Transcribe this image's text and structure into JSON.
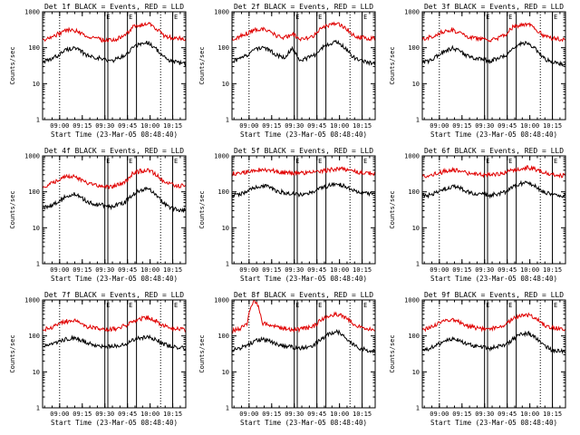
{
  "figure": {
    "background": "#ffffff",
    "colors": {
      "events": "#000000",
      "lld": "#e00000",
      "frame": "#000000"
    }
  },
  "chart_data": [
    {
      "type": "line",
      "title": "Det 1f BLACK = Events, RED = LLD",
      "xlabel": "Start Time (23-Mar-05 08:48:40)",
      "ylabel": "Counts/sec",
      "yscale": "log",
      "ylim": [
        1,
        1000
      ],
      "xlim_minutes": [
        0,
        95
      ],
      "xtick_labels": [
        "09:00",
        "09:15",
        "09:30",
        "09:45",
        "10:00",
        "10:15"
      ],
      "ytick_labels": [
        "1",
        "10",
        "100",
        "1000"
      ],
      "x": [
        0,
        5,
        10,
        15,
        20,
        25,
        30,
        35,
        40,
        45,
        50,
        55,
        60,
        65,
        70,
        75,
        80,
        85,
        90,
        95
      ],
      "series": [
        {
          "name": "Events",
          "color": "#000000",
          "values": [
            40,
            45,
            60,
            85,
            100,
            80,
            60,
            55,
            48,
            42,
            50,
            60,
            100,
            130,
            140,
            95,
            55,
            42,
            38,
            36
          ]
        },
        {
          "name": "LLD",
          "color": "#e00000",
          "values": [
            170,
            190,
            240,
            300,
            320,
            260,
            200,
            180,
            165,
            160,
            180,
            220,
            380,
            420,
            460,
            350,
            220,
            190,
            180,
            175
          ]
        }
      ],
      "vlines_dotted_minutes": [
        11.3,
        78.3
      ],
      "vlines_solid_minutes": [
        41.3,
        43.3,
        56.3,
        62.3,
        86.3
      ],
      "flags": [
        "E"
      ]
    },
    {
      "type": "line",
      "title": "Det 2f BLACK = Events, RED = LLD",
      "xlabel": "Start Time (23-Mar-05 08:48:40)",
      "ylabel": "Counts/sec",
      "yscale": "log",
      "ylim": [
        1,
        1000
      ],
      "xlim_minutes": [
        0,
        95
      ],
      "xtick_labels": [
        "09:00",
        "09:15",
        "09:30",
        "09:45",
        "10:00",
        "10:15"
      ],
      "ytick_labels": [
        "1",
        "10",
        "100",
        "1000"
      ],
      "x": [
        0,
        5,
        10,
        15,
        20,
        25,
        30,
        35,
        40,
        45,
        50,
        55,
        60,
        65,
        70,
        75,
        80,
        85,
        90,
        95
      ],
      "series": [
        {
          "name": "Events",
          "color": "#000000",
          "values": [
            42,
            48,
            62,
            90,
            105,
            82,
            62,
            55,
            90,
            45,
            52,
            62,
            100,
            135,
            145,
            98,
            56,
            43,
            39,
            37
          ]
        },
        {
          "name": "LLD",
          "color": "#e00000",
          "values": [
            180,
            200,
            250,
            310,
            330,
            270,
            210,
            190,
            240,
            165,
            185,
            225,
            380,
            430,
            470,
            360,
            225,
            195,
            185,
            180
          ]
        }
      ],
      "vlines_dotted_minutes": [
        11.3,
        78.3
      ],
      "vlines_solid_minutes": [
        41.3,
        43.3,
        56.3,
        62.3,
        86.3
      ],
      "flags": [
        "E"
      ]
    },
    {
      "type": "line",
      "title": "Det 3f BLACK = Events, RED = LLD",
      "xlabel": "Start Time (23-Mar-05 08:48:40)",
      "ylabel": "Counts/sec",
      "yscale": "log",
      "ylim": [
        1,
        1000
      ],
      "xlim_minutes": [
        0,
        95
      ],
      "xtick_labels": [
        "09:00",
        "09:15",
        "09:30",
        "09:45",
        "10:00",
        "10:15"
      ],
      "ytick_labels": [
        "1",
        "10",
        "100",
        "1000"
      ],
      "x": [
        0,
        5,
        10,
        15,
        20,
        25,
        30,
        35,
        40,
        45,
        50,
        55,
        60,
        65,
        70,
        75,
        80,
        85,
        90,
        95
      ],
      "series": [
        {
          "name": "Events",
          "color": "#000000",
          "values": [
            38,
            44,
            58,
            82,
            98,
            78,
            58,
            52,
            47,
            43,
            50,
            58,
            95,
            125,
            135,
            92,
            52,
            40,
            37,
            35
          ]
        },
        {
          "name": "LLD",
          "color": "#e00000",
          "values": [
            175,
            195,
            240,
            290,
            310,
            255,
            200,
            185,
            170,
            165,
            185,
            220,
            370,
            410,
            440,
            340,
            215,
            185,
            175,
            170
          ]
        }
      ],
      "vlines_dotted_minutes": [
        11.3,
        78.3
      ],
      "vlines_solid_minutes": [
        41.3,
        43.3,
        56.3,
        62.3,
        86.3
      ],
      "flags": [
        "E"
      ]
    },
    {
      "type": "line",
      "title": "Det 4f BLACK = Events, RED = LLD",
      "xlabel": "Start Time (23-Mar-05 08:48:40)",
      "ylabel": "Counts/sec",
      "yscale": "log",
      "ylim": [
        1,
        1000
      ],
      "xlim_minutes": [
        0,
        95
      ],
      "xtick_labels": [
        "09:00",
        "09:15",
        "09:30",
        "09:45",
        "10:00",
        "10:15"
      ],
      "ytick_labels": [
        "1",
        "10",
        "100",
        "1000"
      ],
      "x": [
        0,
        5,
        10,
        15,
        20,
        25,
        30,
        35,
        40,
        45,
        50,
        55,
        60,
        65,
        70,
        75,
        80,
        85,
        90,
        95
      ],
      "series": [
        {
          "name": "Events",
          "color": "#000000",
          "values": [
            35,
            40,
            52,
            72,
            88,
            70,
            52,
            46,
            42,
            38,
            45,
            52,
            85,
            115,
            125,
            85,
            48,
            36,
            32,
            30
          ]
        },
        {
          "name": "LLD",
          "color": "#e00000",
          "values": [
            140,
            160,
            210,
            260,
            280,
            230,
            170,
            150,
            140,
            135,
            155,
            190,
            330,
            380,
            410,
            310,
            190,
            160,
            150,
            145
          ]
        }
      ],
      "vlines_dotted_minutes": [
        11.3,
        78.3
      ],
      "vlines_solid_minutes": [
        41.3,
        43.3,
        56.3,
        62.3,
        86.3
      ],
      "flags": [
        "E"
      ]
    },
    {
      "type": "line",
      "title": "Det 5f BLACK = Events, RED = LLD",
      "xlabel": "Start Time (23-Mar-05 08:48:40)",
      "ylabel": "Counts/sec",
      "yscale": "log",
      "ylim": [
        1,
        1000
      ],
      "xlim_minutes": [
        0,
        95
      ],
      "xtick_labels": [
        "09:00",
        "09:15",
        "09:30",
        "09:45",
        "10:00",
        "10:15"
      ],
      "ytick_labels": [
        "1",
        "10",
        "100",
        "1000"
      ],
      "x": [
        0,
        5,
        10,
        15,
        20,
        25,
        30,
        35,
        40,
        45,
        50,
        55,
        60,
        65,
        70,
        75,
        80,
        85,
        90,
        95
      ],
      "series": [
        {
          "name": "Events",
          "color": "#000000",
          "values": [
            80,
            85,
            100,
            130,
            150,
            130,
            105,
            95,
            90,
            85,
            90,
            100,
            130,
            150,
            165,
            140,
            110,
            95,
            88,
            85
          ]
        },
        {
          "name": "LLD",
          "color": "#e00000",
          "values": [
            320,
            330,
            360,
            400,
            420,
            400,
            360,
            340,
            330,
            330,
            330,
            350,
            380,
            410,
            430,
            420,
            380,
            350,
            330,
            320
          ]
        }
      ],
      "vlines_dotted_minutes": [
        11.3,
        78.3
      ],
      "vlines_solid_minutes": [
        41.3,
        43.3,
        56.3,
        62.3,
        86.3
      ],
      "flags": [
        "E"
      ]
    },
    {
      "type": "line",
      "title": "Det 6f BLACK = Events, RED = LLD",
      "xlabel": "Start Time (23-Mar-05 08:48:40)",
      "ylabel": "Counts/sec",
      "yscale": "log",
      "ylim": [
        1,
        1000
      ],
      "xlim_minutes": [
        0,
        95
      ],
      "xtick_labels": [
        "09:00",
        "09:15",
        "09:30",
        "09:45",
        "10:00",
        "10:15"
      ],
      "ytick_labels": [
        "1",
        "10",
        "100",
        "1000"
      ],
      "x": [
        0,
        5,
        10,
        15,
        20,
        25,
        30,
        35,
        40,
        45,
        50,
        55,
        60,
        65,
        70,
        75,
        80,
        85,
        90,
        95
      ],
      "series": [
        {
          "name": "Events",
          "color": "#000000",
          "values": [
            75,
            80,
            95,
            120,
            140,
            125,
            100,
            90,
            85,
            80,
            88,
            100,
            140,
            170,
            180,
            140,
            100,
            85,
            80,
            75
          ]
        },
        {
          "name": "LLD",
          "color": "#e00000",
          "values": [
            280,
            290,
            320,
            370,
            400,
            380,
            330,
            310,
            300,
            295,
            310,
            340,
            400,
            440,
            470,
            430,
            350,
            300,
            285,
            280
          ]
        }
      ],
      "vlines_dotted_minutes": [
        11.3,
        78.3
      ],
      "vlines_solid_minutes": [
        41.3,
        43.3,
        56.3,
        62.3,
        86.3
      ],
      "flags": [
        "E"
      ]
    },
    {
      "type": "line",
      "title": "Det 7f BLACK = Events, RED = LLD",
      "xlabel": "Start Time (23-Mar-05 08:48:40)",
      "ylabel": "Counts/sec",
      "yscale": "log",
      "ylim": [
        1,
        1000
      ],
      "xlim_minutes": [
        0,
        95
      ],
      "xtick_labels": [
        "09:00",
        "09:15",
        "09:30",
        "09:45",
        "10:00",
        "10:15"
      ],
      "ytick_labels": [
        "1",
        "10",
        "100",
        "1000"
      ],
      "x": [
        0,
        5,
        10,
        15,
        20,
        25,
        30,
        35,
        40,
        45,
        50,
        55,
        60,
        65,
        70,
        75,
        80,
        85,
        90,
        95
      ],
      "series": [
        {
          "name": "Events",
          "color": "#000000",
          "values": [
            50,
            55,
            65,
            80,
            90,
            78,
            62,
            55,
            52,
            50,
            55,
            60,
            75,
            88,
            95,
            80,
            60,
            52,
            48,
            46
          ]
        },
        {
          "name": "LLD",
          "color": "#e00000",
          "values": [
            150,
            165,
            200,
            250,
            270,
            230,
            180,
            160,
            150,
            150,
            165,
            195,
            260,
            300,
            320,
            270,
            190,
            165,
            155,
            150
          ]
        }
      ],
      "vlines_dotted_minutes": [
        11.3,
        78.3
      ],
      "vlines_solid_minutes": [
        41.3,
        43.3,
        56.3,
        62.3,
        86.3
      ],
      "flags": [
        "E"
      ]
    },
    {
      "type": "line",
      "title": "Det 8f BLACK = Events, RED = LLD",
      "xlabel": "Start Time (23-Mar-05 08:48:40)",
      "ylabel": "Counts/sec",
      "yscale": "log",
      "ylim": [
        1,
        1000
      ],
      "xlim_minutes": [
        0,
        95
      ],
      "xtick_labels": [
        "09:00",
        "09:15",
        "09:30",
        "09:45",
        "10:00",
        "10:15"
      ],
      "ytick_labels": [
        "1",
        "10",
        "100",
        "1000"
      ],
      "x": [
        0,
        5,
        10,
        15,
        20,
        25,
        30,
        35,
        40,
        45,
        50,
        55,
        60,
        65,
        70,
        75,
        80,
        85,
        90,
        95
      ],
      "series": [
        {
          "name": "Events",
          "color": "#000000",
          "values": [
            40,
            45,
            55,
            70,
            80,
            70,
            58,
            52,
            48,
            45,
            50,
            58,
            85,
            120,
            130,
            95,
            58,
            45,
            40,
            38
          ]
        },
        {
          "name": "LLD",
          "color": "#e00000",
          "values": [
            140,
            160,
            200,
            1000,
            230,
            200,
            170,
            160,
            150,
            150,
            165,
            195,
            300,
            370,
            400,
            330,
            220,
            180,
            160,
            150
          ]
        }
      ],
      "vlines_dotted_minutes": [
        11.3,
        78.3
      ],
      "vlines_solid_minutes": [
        41.3,
        43.3,
        56.3,
        62.3,
        86.3
      ],
      "flags": [
        "E"
      ]
    },
    {
      "type": "line",
      "title": "Det 9f BLACK = Events, RED = LLD",
      "xlabel": "Start Time (23-Mar-05 08:48:40)",
      "ylabel": "Counts/sec",
      "yscale": "log",
      "ylim": [
        1,
        1000
      ],
      "xlim_minutes": [
        0,
        95
      ],
      "xtick_labels": [
        "09:00",
        "09:15",
        "09:30",
        "09:45",
        "10:00",
        "10:15"
      ],
      "ytick_labels": [
        "1",
        "10",
        "100",
        "1000"
      ],
      "x": [
        0,
        5,
        10,
        15,
        20,
        25,
        30,
        35,
        40,
        45,
        50,
        55,
        60,
        65,
        70,
        75,
        80,
        85,
        90,
        95
      ],
      "series": [
        {
          "name": "Events",
          "color": "#000000",
          "values": [
            38,
            44,
            55,
            72,
            85,
            72,
            58,
            52,
            48,
            45,
            50,
            56,
            80,
            110,
            120,
            88,
            55,
            42,
            38,
            36
          ]
        },
        {
          "name": "LLD",
          "color": "#e00000",
          "values": [
            150,
            170,
            210,
            260,
            280,
            240,
            190,
            170,
            160,
            155,
            170,
            200,
            300,
            350,
            380,
            310,
            210,
            175,
            160,
            155
          ]
        }
      ],
      "vlines_dotted_minutes": [
        11.3,
        78.3
      ],
      "vlines_solid_minutes": [
        41.3,
        43.3,
        56.3,
        62.3,
        86.3
      ],
      "flags": [
        "E"
      ]
    }
  ]
}
